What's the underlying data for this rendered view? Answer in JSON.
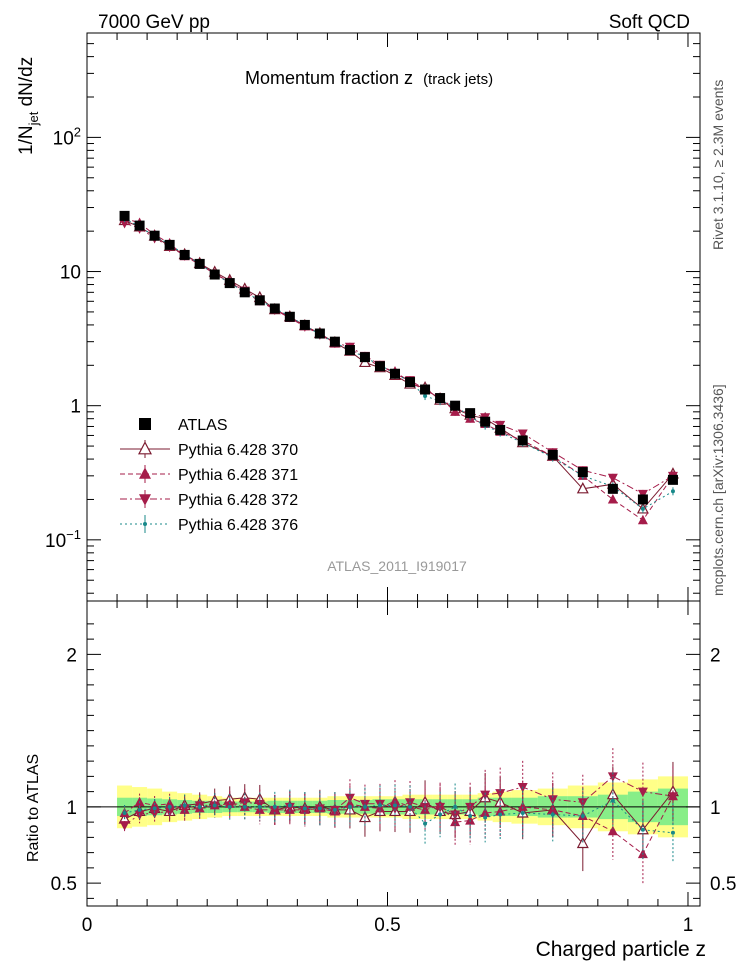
{
  "header": {
    "left": "7000 GeV pp",
    "right": "Soft QCD"
  },
  "side_text": {
    "rivet": "Rivet 3.1.10, ≥ 2.3M events",
    "mcplots": "mcplots.cern.ch [arXiv:1306.3436]"
  },
  "watermark": "ATLAS_2011_I919017",
  "chart_data": [
    {
      "type": "scatter",
      "title": "Momentum fraction z",
      "subtitle": "(track jets)",
      "ylabel_main": "1/N",
      "ylabel_sub": "jet",
      "ylabel_tail": " dN/dz",
      "y_scale": "log",
      "ylim": [
        0.035,
        600
      ],
      "xlim": [
        0,
        1.02
      ],
      "legend_position": "lower-left",
      "y_ticks": [
        {
          "label": "10",
          "sup": "−1",
          "value": 0.1
        },
        {
          "label": "1",
          "sup": "",
          "value": 1
        },
        {
          "label": "10",
          "sup": "",
          "value": 10
        },
        {
          "label": "10",
          "sup": "2",
          "value": 100
        }
      ],
      "x": [
        0.0625,
        0.0875,
        0.1125,
        0.1375,
        0.1625,
        0.1875,
        0.2125,
        0.2375,
        0.2625,
        0.2875,
        0.3125,
        0.3375,
        0.3625,
        0.3875,
        0.4125,
        0.4375,
        0.4625,
        0.4875,
        0.5125,
        0.5375,
        0.5625,
        0.5875,
        0.6125,
        0.6375,
        0.6625,
        0.6875,
        0.725,
        0.775,
        0.825,
        0.875,
        0.925,
        0.975
      ],
      "series": [
        {
          "name": "ATLAS",
          "marker": "square",
          "color": "#000000",
          "dash": "",
          "values": [
            26,
            22,
            18.5,
            15.8,
            13.3,
            11.4,
            9.5,
            8.2,
            7.0,
            6.1,
            5.3,
            4.6,
            4.0,
            3.45,
            3.0,
            2.6,
            2.3,
            1.97,
            1.73,
            1.5,
            1.32,
            1.14,
            1.0,
            0.88,
            0.76,
            0.66,
            0.55,
            0.43,
            0.32,
            0.24,
            0.2,
            0.28
          ]
        },
        {
          "name": "Pythia 6.428 370",
          "marker": "triangle-up-open",
          "color": "#7b1b30",
          "dash": "",
          "values": [
            24,
            21.5,
            18.4,
            15.4,
            13.4,
            11.5,
            9.9,
            8.6,
            7.4,
            6.4,
            5.2,
            4.6,
            3.95,
            3.45,
            2.95,
            2.55,
            2.1,
            1.92,
            1.68,
            1.45,
            1.36,
            1.1,
            0.95,
            0.85,
            0.8,
            0.68,
            0.53,
            0.42,
            0.24,
            0.26,
            0.17,
            0.31
          ]
        },
        {
          "name": "Pythia 6.428 371",
          "marker": "triangle-up",
          "color": "#a51c4a",
          "dash": "5,3",
          "values": [
            25,
            23,
            18.8,
            16.2,
            13.0,
            11.3,
            9.6,
            8.4,
            7.0,
            6.0,
            5.2,
            4.5,
            3.9,
            3.4,
            2.9,
            2.65,
            2.3,
            1.95,
            1.8,
            1.5,
            1.3,
            1.15,
            0.9,
            0.8,
            0.73,
            0.64,
            0.55,
            0.42,
            0.3,
            0.2,
            0.14,
            0.3
          ]
        },
        {
          "name": "Pythia 6.428 372",
          "marker": "triangle-down",
          "color": "#a51c4a",
          "dash": "7,3,2,3",
          "values": [
            23,
            21,
            17.8,
            15.3,
            13.2,
            11.5,
            9.6,
            8.3,
            7.2,
            6.2,
            5.2,
            4.6,
            3.9,
            3.4,
            2.95,
            2.75,
            2.35,
            2.02,
            1.72,
            1.55,
            1.32,
            1.14,
            0.95,
            0.88,
            0.82,
            0.72,
            0.62,
            0.45,
            0.33,
            0.29,
            0.22,
            0.3
          ]
        },
        {
          "name": "Pythia 6.428 376",
          "marker": "dot",
          "color": "#18898a",
          "dash": "2,3",
          "values": [
            25,
            21.5,
            18.4,
            15.9,
            13.4,
            11.4,
            9.6,
            8.2,
            7.0,
            6.1,
            5.3,
            4.65,
            3.95,
            3.4,
            2.95,
            2.6,
            2.3,
            2.0,
            1.75,
            1.5,
            1.18,
            1.08,
            1.0,
            0.83,
            0.71,
            0.63,
            0.53,
            0.41,
            0.3,
            0.25,
            0.17,
            0.23
          ]
        }
      ]
    },
    {
      "type": "scatter",
      "ylabel": "Ratio to ATLAS",
      "xlabel": "Charged particle z",
      "ylim": [
        0.35,
        2.35
      ],
      "xlim": [
        0,
        1.02
      ],
      "y_ticks": [
        0.5,
        1,
        2
      ],
      "x_ticks": [
        0,
        0.5,
        1
      ],
      "x_tick_labels": [
        "0",
        "0.5",
        "1"
      ],
      "band_inner_halfwidth": [
        0.06,
        0.06,
        0.055,
        0.05,
        0.045,
        0.04,
        0.04,
        0.035,
        0.035,
        0.035,
        0.04,
        0.04,
        0.04,
        0.04,
        0.045,
        0.045,
        0.045,
        0.05,
        0.05,
        0.05,
        0.05,
        0.05,
        0.05,
        0.05,
        0.06,
        0.06,
        0.06,
        0.07,
        0.07,
        0.08,
        0.1,
        0.12
      ],
      "band_outer_halfwidth": [
        0.14,
        0.13,
        0.12,
        0.1,
        0.09,
        0.08,
        0.07,
        0.06,
        0.06,
        0.06,
        0.06,
        0.06,
        0.06,
        0.06,
        0.07,
        0.07,
        0.07,
        0.07,
        0.07,
        0.08,
        0.08,
        0.08,
        0.08,
        0.08,
        0.09,
        0.1,
        0.11,
        0.12,
        0.14,
        0.16,
        0.18,
        0.2
      ],
      "series": [
        {
          "name": "Pythia 6.428 370",
          "values": [
            0.92,
            0.97,
            0.99,
            0.97,
            1.01,
            1.02,
            1.04,
            1.05,
            1.06,
            1.05,
            0.98,
            1.0,
            0.99,
            1.0,
            0.98,
            0.98,
            0.93,
            0.97,
            0.97,
            0.97,
            1.03,
            0.97,
            0.95,
            0.97,
            1.06,
            1.03,
            0.96,
            0.98,
            0.76,
            1.08,
            0.85,
            1.1
          ]
        },
        {
          "name": "Pythia 6.428 371",
          "values": [
            0.96,
            1.03,
            1.01,
            1.02,
            0.98,
            0.99,
            1.01,
            1.02,
            1.0,
            0.98,
            0.98,
            0.98,
            0.98,
            0.99,
            0.97,
            1.02,
            1.0,
            0.99,
            1.04,
            1.0,
            0.98,
            1.01,
            0.9,
            0.91,
            0.96,
            0.97,
            1.0,
            0.98,
            0.94,
            0.84,
            0.69,
            1.07
          ]
        },
        {
          "name": "Pythia 6.428 372",
          "values": [
            0.88,
            0.95,
            0.96,
            0.97,
            0.99,
            1.01,
            1.01,
            1.01,
            1.03,
            1.02,
            0.98,
            1.0,
            0.98,
            0.99,
            0.98,
            1.06,
            1.02,
            1.02,
            0.99,
            1.03,
            1.0,
            1.0,
            0.95,
            1.0,
            1.08,
            1.09,
            1.13,
            1.05,
            1.03,
            1.2,
            1.1,
            1.07
          ]
        },
        {
          "name": "Pythia 6.428 376",
          "values": [
            0.96,
            0.98,
            0.99,
            1.0,
            1.01,
            1.0,
            1.01,
            1.0,
            1.0,
            1.0,
            1.0,
            1.01,
            0.99,
            0.99,
            0.98,
            1.0,
            1.0,
            1.01,
            1.01,
            1.0,
            0.89,
            0.95,
            1.0,
            0.94,
            0.93,
            0.95,
            0.96,
            0.95,
            0.94,
            1.04,
            0.85,
            0.83
          ]
        }
      ]
    }
  ]
}
